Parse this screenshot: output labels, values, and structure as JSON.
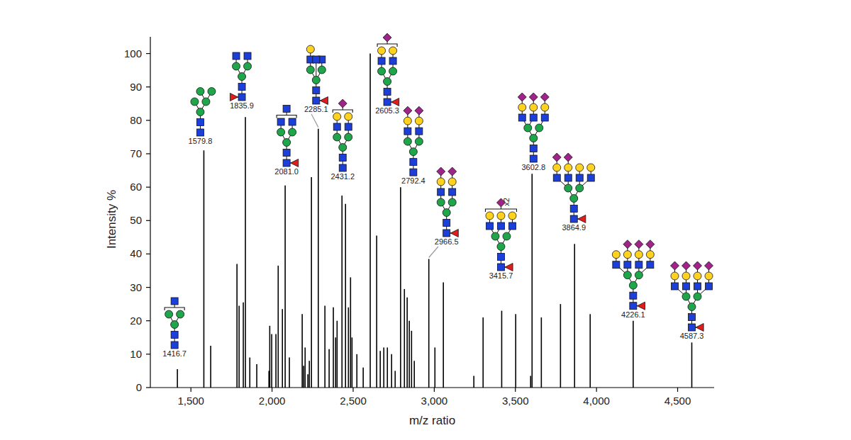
{
  "chart_data": {
    "type": "bar",
    "x_label": "m/z ratio",
    "y_label": "Intensity %",
    "color": "#000000",
    "grid": false,
    "xlim": [
      1250,
      4725
    ],
    "ylim": [
      0,
      105
    ],
    "xticks": [
      {
        "value": 1500,
        "label": "1,500"
      },
      {
        "value": 2000,
        "label": "2,000"
      },
      {
        "value": 2500,
        "label": "2,500"
      },
      {
        "value": 3000,
        "label": "3,000"
      },
      {
        "value": 3500,
        "label": "3,500"
      },
      {
        "value": 4000,
        "label": "4,000"
      },
      {
        "value": 4500,
        "label": "4,500"
      }
    ],
    "yticks": [
      0,
      10,
      20,
      30,
      40,
      50,
      60,
      70,
      80,
      90,
      100
    ],
    "x": [
      1416.7,
      1579.8,
      1622,
      1784,
      1797,
      1823,
      1835.9,
      1863,
      1906,
      1981,
      1986,
      1998,
      2024,
      2038,
      2064,
      2081,
      2107,
      2186,
      2195,
      2204,
      2221,
      2230,
      2243,
      2285.1,
      2326,
      2352,
      2378,
      2392,
      2401,
      2431.2,
      2453,
      2471,
      2484,
      2493,
      2523,
      2562,
      2605.3,
      2645,
      2667,
      2689,
      2711,
      2737,
      2759,
      2792.4,
      2816,
      2833,
      2846,
      2860,
      2877,
      2966.5,
      3004,
      3056,
      3244,
      3301,
      3415.7,
      3502,
      3594,
      3602.8,
      3660,
      3778,
      3864.9,
      3961,
      4226.1,
      4587.3
    ],
    "values": [
      5.5,
      71,
      12.5,
      37,
      24.5,
      25.5,
      81,
      9,
      7,
      5,
      18.5,
      16,
      16,
      36.5,
      23.5,
      60.5,
      9,
      22,
      6.5,
      12,
      4,
      8,
      63,
      77.5,
      24.5,
      11.5,
      24,
      15,
      20,
      57.5,
      55,
      24,
      33,
      15,
      10,
      6,
      100,
      45.5,
      11,
      12,
      12,
      10,
      5,
      60,
      29.5,
      27,
      20,
      17,
      8,
      38.5,
      12,
      31.5,
      3.5,
      21,
      23,
      22,
      3.5,
      64,
      21,
      25,
      43,
      22,
      20,
      13.5
    ],
    "annotations": [
      {
        "text": "1416.7",
        "x": 1416.7
      },
      {
        "text": "1579.8",
        "x": 1579.8
      },
      {
        "text": "1835.9",
        "x": 1835.9
      },
      {
        "text": "2081.0",
        "x": 2081
      },
      {
        "text": "2285.1",
        "x": 2285.1
      },
      {
        "text": "2431.2",
        "x": 2431.2
      },
      {
        "text": "2605.3",
        "x": 2605.3
      },
      {
        "text": "2792.4",
        "x": 2792.4
      },
      {
        "text": "2966.5",
        "x": 2966.5
      },
      {
        "text": "3415.7",
        "x": 3415.7,
        "tag": "x2"
      },
      {
        "text": "3602.8",
        "x": 3602.8
      },
      {
        "text": "3864.9",
        "x": 3864.9
      },
      {
        "text": "4226.1",
        "x": 4226.1
      },
      {
        "text": "4587.3",
        "x": 4587.3
      }
    ]
  }
}
